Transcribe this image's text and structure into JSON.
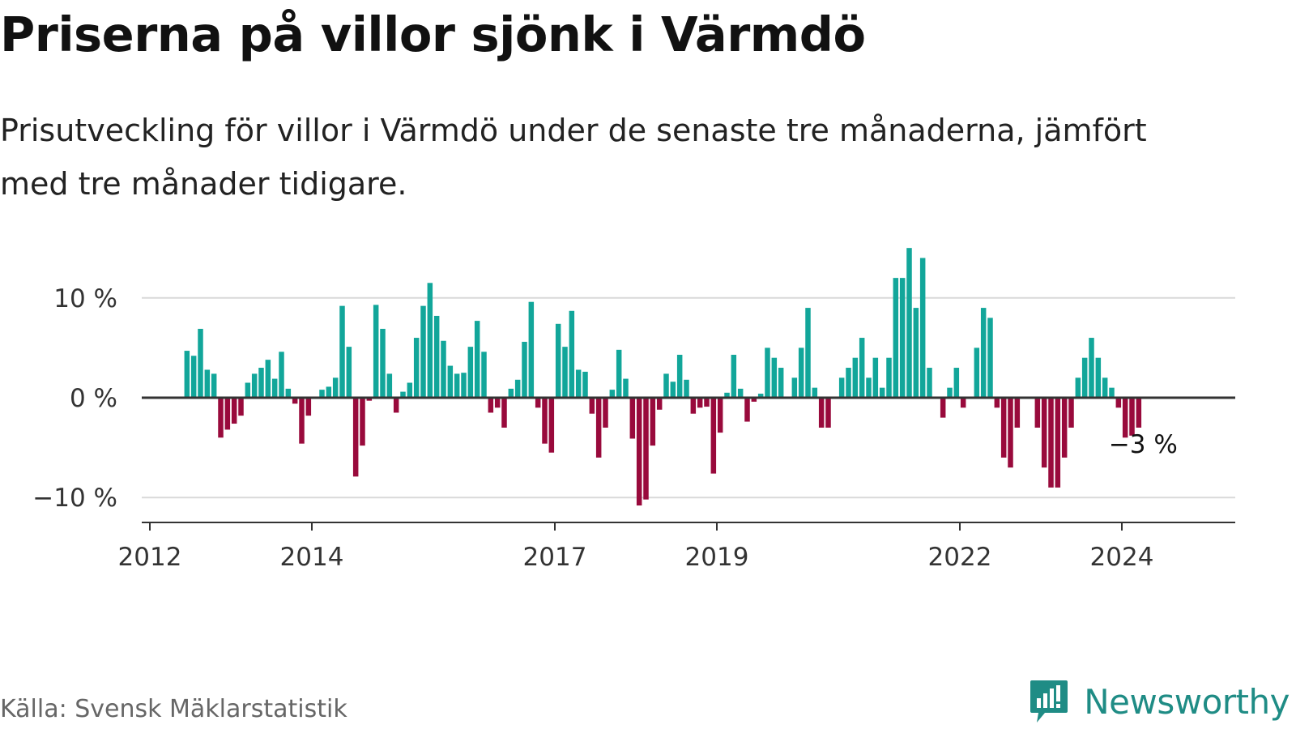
{
  "title": "Priserna på villor sjönk i Värmdö",
  "subtitle": "Prisutveckling för villor i Värmdö under de senaste tre månaderna, jämfört med tre månader tidigare.",
  "source": "Källa: Svensk Mäklarstatistik",
  "brand": {
    "name": "Newsworthy",
    "icon": "chart-bubble-icon"
  },
  "colors": {
    "positive": "#12a69a",
    "negative": "#990a3c",
    "grid": "#d9d9d9",
    "axis": "#333333",
    "brand": "#1f8c85"
  },
  "chart_data": {
    "type": "bar",
    "ylabel": "",
    "xlabel": "",
    "ylim": [
      -12.5,
      15.5
    ],
    "y_ticks": [
      {
        "value": 10,
        "label": "10 %"
      },
      {
        "value": 0,
        "label": "0 %"
      },
      {
        "value": -10,
        "label": "−10 %"
      }
    ],
    "x_domain": [
      2011.9,
      2025.4
    ],
    "x_ticks": [
      {
        "value": 2012,
        "label": "2012"
      },
      {
        "value": 2014,
        "label": "2014"
      },
      {
        "value": 2017,
        "label": "2017"
      },
      {
        "value": 2019,
        "label": "2019"
      },
      {
        "value": 2022,
        "label": "2022"
      },
      {
        "value": 2024,
        "label": "2024"
      }
    ],
    "start_year": 2012,
    "start_month": 6,
    "values": [
      4.7,
      4.2,
      6.9,
      2.8,
      2.4,
      -4.0,
      -3.2,
      -2.6,
      -1.8,
      1.5,
      2.4,
      3.0,
      3.8,
      1.9,
      4.6,
      0.9,
      -0.6,
      -4.6,
      -1.8,
      0.0,
      0.8,
      1.1,
      2.0,
      9.2,
      5.1,
      -7.9,
      -4.8,
      -0.3,
      9.3,
      6.9,
      2.4,
      -1.5,
      0.6,
      1.5,
      6.0,
      9.2,
      11.5,
      8.2,
      5.7,
      3.2,
      2.4,
      2.5,
      5.1,
      7.7,
      4.6,
      -1.5,
      -1.0,
      -3.0,
      0.9,
      1.8,
      5.6,
      9.6,
      -1.0,
      -4.6,
      -5.5,
      7.4,
      5.1,
      8.7,
      2.8,
      2.6,
      -1.6,
      -6.0,
      -3.0,
      0.8,
      4.8,
      1.9,
      -4.1,
      -10.8,
      -10.2,
      -4.8,
      -1.2,
      2.4,
      1.6,
      4.3,
      1.8,
      -1.6,
      -1.0,
      -0.9,
      -7.6,
      -3.5,
      0.5,
      4.3,
      0.9,
      -2.4,
      -0.4,
      0.4,
      5.0,
      4.0,
      3.0,
      0.0,
      2.0,
      5.0,
      9.0,
      1.0,
      -3.0,
      -3.0,
      0.0,
      2.0,
      3.0,
      4.0,
      6.0,
      2.0,
      4.0,
      1.0,
      4.0,
      12.0,
      12.0,
      15.0,
      9.0,
      14.0,
      3.0,
      0.0,
      -2.0,
      1.0,
      3.0,
      -1.0,
      0.0,
      5.0,
      9.0,
      8.0,
      -1.0,
      -6.0,
      -7.0,
      -3.0,
      0.0,
      0.0,
      -3.0,
      -7.0,
      -9.0,
      -9.0,
      -6.0,
      -3.0,
      2.0,
      4.0,
      6.0,
      4.0,
      2.0,
      1.0,
      -1.0,
      -4.0,
      -3.8,
      -3.0
    ],
    "annotation": {
      "label": "−3 %",
      "value": -3
    }
  }
}
